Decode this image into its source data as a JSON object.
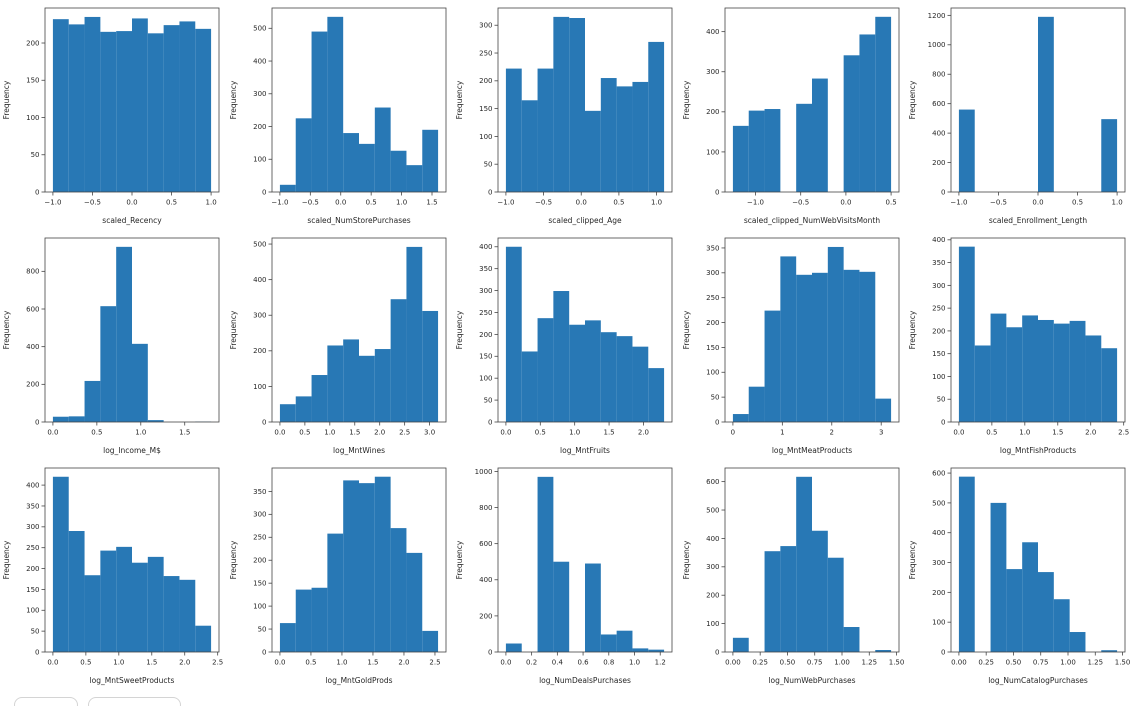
{
  "figure": {
    "background": "#ffffff",
    "bar_color": "#2878b5",
    "spine_color": "#444444",
    "text_color": "#262626",
    "ylabel": "Frequency"
  },
  "footer": {
    "chips": [
      "footer-chip-left",
      "footer-chip-right"
    ]
  },
  "chart_data": [
    {
      "type": "bar",
      "subtype": "histogram",
      "title": "",
      "xlabel": "scaled_Recency",
      "ylabel": "Frequency",
      "bin_start": -1.0,
      "bin_end": 1.0,
      "values": [
        232,
        225,
        235,
        215,
        216,
        233,
        213,
        224,
        229,
        219
      ],
      "xlim": [
        -1.1,
        1.1
      ],
      "ylim": [
        0,
        247
      ],
      "xticks": [
        -1.0,
        -0.5,
        0.0,
        0.5,
        1.0
      ],
      "xtick_labels": [
        "−1.0",
        "−0.5",
        "0.0",
        "0.5",
        "1.0"
      ],
      "yticks": [
        0,
        50,
        100,
        150,
        200
      ],
      "grid": false,
      "legend": "none"
    },
    {
      "type": "bar",
      "subtype": "histogram",
      "title": "",
      "xlabel": "scaled_NumStorePurchases",
      "ylabel": "Frequency",
      "bin_start": -1.0,
      "bin_end": 1.6,
      "values": [
        22,
        225,
        490,
        535,
        180,
        147,
        258,
        126,
        82,
        190
      ],
      "xlim": [
        -1.13,
        1.73
      ],
      "ylim": [
        0,
        562
      ],
      "xticks": [
        -1.0,
        -0.5,
        0.0,
        0.5,
        1.0,
        1.5
      ],
      "xtick_labels": [
        "−1.0",
        "−0.5",
        "0.0",
        "0.5",
        "1.0",
        "1.5"
      ],
      "yticks": [
        0,
        100,
        200,
        300,
        400,
        500
      ],
      "grid": false,
      "legend": "none"
    },
    {
      "type": "bar",
      "subtype": "histogram",
      "title": "",
      "xlabel": "scaled_clipped_Age",
      "ylabel": "Frequency",
      "bin_start": -1.0,
      "bin_end": 1.1,
      "values": [
        222,
        165,
        222,
        315,
        313,
        146,
        205,
        190,
        198,
        270
      ],
      "xlim": [
        -1.105,
        1.205
      ],
      "ylim": [
        0,
        331
      ],
      "xticks": [
        -1.0,
        -0.5,
        0.0,
        0.5,
        1.0
      ],
      "xtick_labels": [
        "−1.0",
        "−0.5",
        "0.0",
        "0.5",
        "1.0"
      ],
      "yticks": [
        0,
        50,
        100,
        150,
        200,
        250,
        300
      ],
      "grid": false,
      "legend": "none"
    },
    {
      "type": "bar",
      "subtype": "histogram",
      "title": "",
      "xlabel": "scaled_clipped_NumWebVisitsMonth",
      "ylabel": "Frequency",
      "bin_start": -1.25,
      "bin_end": 0.5,
      "values": [
        165,
        203,
        207,
        0,
        220,
        283,
        0,
        341,
        393,
        437
      ],
      "xlim": [
        -1.3375,
        0.5875
      ],
      "ylim": [
        0,
        459
      ],
      "xticks": [
        -1.0,
        -0.5,
        0.0,
        0.5
      ],
      "xtick_labels": [
        "−1.0",
        "−0.5",
        "0.0",
        "0.5"
      ],
      "yticks": [
        0,
        100,
        200,
        300,
        400
      ],
      "grid": false,
      "legend": "none"
    },
    {
      "type": "bar",
      "subtype": "histogram",
      "title": "",
      "xlabel": "scaled_Enrollment_Length",
      "ylabel": "Frequency",
      "bin_start": -1.0,
      "bin_end": 1.0,
      "values": [
        560,
        0,
        0,
        0,
        0,
        1190,
        0,
        0,
        0,
        495
      ],
      "xlim": [
        -1.1,
        1.1
      ],
      "ylim": [
        0,
        1250
      ],
      "xticks": [
        -1.0,
        -0.5,
        0.0,
        0.5,
        1.0
      ],
      "xtick_labels": [
        "−1.0",
        "−0.5",
        "0.0",
        "0.5",
        "1.0"
      ],
      "yticks": [
        0,
        200,
        400,
        600,
        800,
        1000,
        1200
      ],
      "grid": false,
      "legend": "none"
    },
    {
      "type": "bar",
      "subtype": "histogram",
      "title": "",
      "xlabel": "log_Income_M$",
      "ylabel": "Frequency",
      "bin_start": 0.0,
      "bin_end": 1.8,
      "values": [
        28,
        30,
        218,
        615,
        930,
        415,
        10,
        0,
        0,
        2
      ],
      "xlim": [
        -0.09,
        1.89
      ],
      "ylim": [
        0,
        977
      ],
      "xticks": [
        0.0,
        0.5,
        1.0,
        1.5
      ],
      "xtick_labels": [
        "0.0",
        "0.5",
        "1.0",
        "1.5"
      ],
      "yticks": [
        0,
        200,
        400,
        600,
        800
      ],
      "grid": false,
      "legend": "none"
    },
    {
      "type": "bar",
      "subtype": "histogram",
      "title": "",
      "xlabel": "log_MntWines",
      "ylabel": "Frequency",
      "bin_start": 0.0,
      "bin_end": 3.17,
      "values": [
        50,
        72,
        132,
        215,
        232,
        186,
        205,
        345,
        492,
        312
      ],
      "xlim": [
        -0.159,
        3.329
      ],
      "ylim": [
        0,
        517
      ],
      "xticks": [
        0.0,
        0.5,
        1.0,
        1.5,
        2.0,
        2.5,
        3.0
      ],
      "xtick_labels": [
        "0.0",
        "0.5",
        "1.0",
        "1.5",
        "2.0",
        "2.5",
        "3.0"
      ],
      "yticks": [
        0,
        100,
        200,
        300,
        400,
        500
      ],
      "grid": false,
      "legend": "none"
    },
    {
      "type": "bar",
      "subtype": "histogram",
      "title": "",
      "xlabel": "log_MntFruits",
      "ylabel": "Frequency",
      "bin_start": 0.0,
      "bin_end": 2.3,
      "values": [
        400,
        161,
        237,
        299,
        222,
        232,
        205,
        196,
        172,
        123
      ],
      "xlim": [
        -0.115,
        2.415
      ],
      "ylim": [
        0,
        420
      ],
      "xticks": [
        0.0,
        0.5,
        1.0,
        1.5,
        2.0
      ],
      "xtick_labels": [
        "0.0",
        "0.5",
        "1.0",
        "1.5",
        "2.0"
      ],
      "yticks": [
        0,
        50,
        100,
        150,
        200,
        250,
        300,
        350,
        400
      ],
      "grid": false,
      "legend": "none"
    },
    {
      "type": "bar",
      "subtype": "histogram",
      "title": "",
      "xlabel": "log_MntMeatProducts",
      "ylabel": "Frequency",
      "bin_start": 0.0,
      "bin_end": 3.2,
      "values": [
        16,
        71,
        224,
        333,
        296,
        300,
        352,
        306,
        302,
        47
      ],
      "xlim": [
        -0.16,
        3.36
      ],
      "ylim": [
        0,
        370
      ],
      "xticks": [
        0,
        1,
        2,
        3
      ],
      "xtick_labels": [
        "0",
        "1",
        "2",
        "3"
      ],
      "yticks": [
        0,
        50,
        100,
        150,
        200,
        250,
        300,
        350
      ],
      "grid": false,
      "legend": "none"
    },
    {
      "type": "bar",
      "subtype": "histogram",
      "title": "",
      "xlabel": "log_MntFishProducts",
      "ylabel": "Frequency",
      "bin_start": 0.0,
      "bin_end": 2.4,
      "values": [
        385,
        168,
        238,
        208,
        234,
        224,
        216,
        222,
        190,
        162
      ],
      "xlim": [
        -0.12,
        2.52
      ],
      "ylim": [
        0,
        404
      ],
      "xticks": [
        0.0,
        0.5,
        1.0,
        1.5,
        2.0,
        2.5
      ],
      "xtick_labels": [
        "0.0",
        "0.5",
        "1.0",
        "1.5",
        "2.0",
        "2.5"
      ],
      "yticks": [
        0,
        50,
        100,
        150,
        200,
        250,
        300,
        350,
        400
      ],
      "grid": false,
      "legend": "none"
    },
    {
      "type": "bar",
      "subtype": "histogram",
      "title": "",
      "xlabel": "log_MntSweetProducts",
      "ylabel": "Frequency",
      "bin_start": 0.0,
      "bin_end": 2.4,
      "values": [
        420,
        290,
        184,
        243,
        252,
        214,
        228,
        182,
        173,
        63
      ],
      "xlim": [
        -0.12,
        2.52
      ],
      "ylim": [
        0,
        441
      ],
      "xticks": [
        0.0,
        0.5,
        1.0,
        1.5,
        2.0,
        2.5
      ],
      "xtick_labels": [
        "0.0",
        "0.5",
        "1.0",
        "1.5",
        "2.0",
        "2.5"
      ],
      "yticks": [
        0,
        50,
        100,
        150,
        200,
        250,
        300,
        350,
        400
      ],
      "grid": false,
      "legend": "none"
    },
    {
      "type": "bar",
      "subtype": "histogram",
      "title": "",
      "xlabel": "log_MntGoldProds",
      "ylabel": "Frequency",
      "bin_start": 0.0,
      "bin_end": 2.55,
      "values": [
        63,
        136,
        140,
        258,
        374,
        368,
        382,
        270,
        216,
        46
      ],
      "xlim": [
        -0.128,
        2.678
      ],
      "ylim": [
        0,
        401
      ],
      "xticks": [
        0.0,
        0.5,
        1.0,
        1.5,
        2.0,
        2.5
      ],
      "xtick_labels": [
        "0.0",
        "0.5",
        "1.0",
        "1.5",
        "2.0",
        "2.5"
      ],
      "yticks": [
        0,
        50,
        100,
        150,
        200,
        250,
        300,
        350
      ],
      "grid": false,
      "legend": "none"
    },
    {
      "type": "bar",
      "subtype": "histogram",
      "title": "",
      "xlabel": "log_NumDealsPurchases",
      "ylabel": "Frequency",
      "bin_start": 0.0,
      "bin_end": 1.23,
      "values": [
        47,
        0,
        970,
        500,
        0,
        490,
        97,
        118,
        20,
        13
      ],
      "xlim": [
        -0.0615,
        1.2915
      ],
      "ylim": [
        0,
        1019
      ],
      "xticks": [
        0.0,
        0.2,
        0.4,
        0.6,
        0.8,
        1.0,
        1.2
      ],
      "xtick_labels": [
        "0.0",
        "0.2",
        "0.4",
        "0.6",
        "0.8",
        "1.0",
        "1.2"
      ],
      "yticks": [
        0,
        200,
        400,
        600,
        800,
        1000
      ],
      "grid": false,
      "legend": "none"
    },
    {
      "type": "bar",
      "subtype": "histogram",
      "title": "",
      "xlabel": "log_NumWebPurchases",
      "ylabel": "Frequency",
      "bin_start": 0.0,
      "bin_end": 1.45,
      "values": [
        50,
        0,
        355,
        373,
        617,
        427,
        332,
        88,
        0,
        7
      ],
      "xlim": [
        -0.0725,
        1.5225
      ],
      "ylim": [
        0,
        648
      ],
      "xticks": [
        0.0,
        0.25,
        0.5,
        0.75,
        1.0,
        1.25,
        1.5
      ],
      "xtick_labels": [
        "0.00",
        "0.25",
        "0.50",
        "0.75",
        "1.00",
        "1.25",
        "1.50"
      ],
      "yticks": [
        0,
        100,
        200,
        300,
        400,
        500,
        600
      ],
      "grid": false,
      "legend": "none"
    },
    {
      "type": "bar",
      "subtype": "histogram",
      "title": "",
      "xlabel": "log_NumCatalogPurchases",
      "ylabel": "Frequency",
      "bin_start": 0.0,
      "bin_end": 1.45,
      "values": [
        588,
        0,
        500,
        278,
        368,
        268,
        177,
        67,
        0,
        6
      ],
      "xlim": [
        -0.0725,
        1.5225
      ],
      "ylim": [
        0,
        617
      ],
      "xticks": [
        0.0,
        0.25,
        0.5,
        0.75,
        1.0,
        1.25,
        1.5
      ],
      "xtick_labels": [
        "0.00",
        "0.25",
        "0.50",
        "0.75",
        "1.00",
        "1.25",
        "1.50"
      ],
      "yticks": [
        0,
        100,
        200,
        300,
        400,
        500,
        600
      ],
      "grid": false,
      "legend": "none"
    }
  ]
}
